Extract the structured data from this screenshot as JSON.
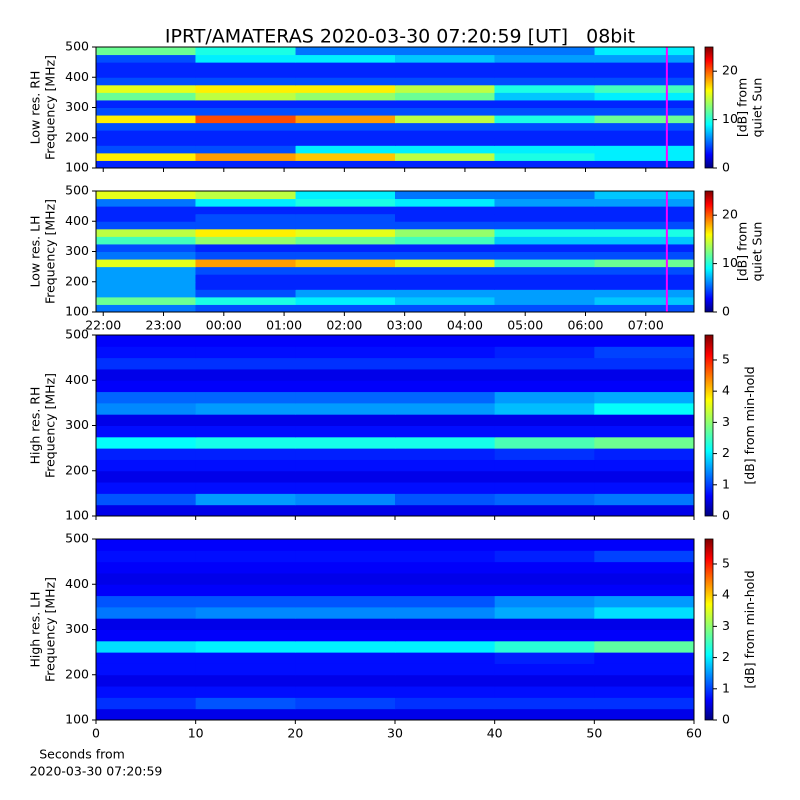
{
  "chart_data": [
    {
      "type": "heatmap",
      "title": "IPRT/AMATERAS 2020-03-30 07:20:59 [UT]   08bit",
      "ylabel": [
        "Low res. RH",
        "Frequency [MHz]"
      ],
      "colorbar_label": [
        "[dB] from",
        "quiet Sun"
      ],
      "xlim": [
        -0.12,
        9.8
      ],
      "ylim": [
        100,
        500
      ],
      "yticks": [
        100,
        200,
        300,
        400,
        500
      ],
      "clim": [
        0,
        25
      ],
      "cticks": [
        0,
        10,
        20
      ],
      "colormap": "jet",
      "marker_x": 9.35,
      "marker_color": "#ff00ff",
      "xbins": [
        -0.12,
        1.53,
        3.19,
        4.84,
        6.49,
        8.15,
        9.8
      ],
      "ybins": [
        100,
        125,
        150,
        175,
        200,
        225,
        250,
        275,
        300,
        325,
        350,
        375,
        400,
        425,
        450,
        475,
        500
      ],
      "z": [
        [
          4,
          4,
          4,
          4,
          4,
          4
        ],
        [
          16,
          18,
          17,
          14,
          10,
          9
        ],
        [
          5,
          5,
          9,
          9,
          9,
          9
        ],
        [
          4,
          4,
          4,
          4,
          4,
          4
        ],
        [
          4,
          4,
          4,
          4,
          4,
          4
        ],
        [
          5,
          5,
          5,
          5,
          5,
          5
        ],
        [
          16,
          20,
          18,
          14,
          10,
          12
        ],
        [
          5,
          5,
          5,
          5,
          5,
          5
        ],
        [
          4,
          4,
          4,
          4,
          4,
          4
        ],
        [
          12,
          14,
          13,
          12,
          8,
          9
        ],
        [
          15,
          16,
          16,
          14,
          10,
          11
        ],
        [
          5,
          5,
          5,
          5,
          5,
          5
        ],
        [
          4,
          4,
          4,
          4,
          4,
          4
        ],
        [
          4,
          4,
          4,
          4,
          4,
          4
        ],
        [
          5,
          9,
          9,
          8,
          7,
          7
        ],
        [
          12,
          10,
          6,
          6,
          6,
          9
        ]
      ]
    },
    {
      "type": "heatmap",
      "ylabel": [
        "Low res. LH",
        "Frequency [MHz]"
      ],
      "colorbar_label": [
        "[dB] from",
        "quiet Sun"
      ],
      "xlim": [
        -0.12,
        9.8
      ],
      "ylim": [
        100,
        500
      ],
      "yticks": [
        100,
        200,
        300,
        400,
        500
      ],
      "xticks": [
        {
          "value": 0,
          "label": "22:00"
        },
        {
          "value": 1,
          "label": "23:00"
        },
        {
          "value": 2,
          "label": "00:00"
        },
        {
          "value": 3,
          "label": "01:00"
        },
        {
          "value": 4,
          "label": "02:00"
        },
        {
          "value": 5,
          "label": "03:00"
        },
        {
          "value": 6,
          "label": "04:00"
        },
        {
          "value": 7,
          "label": "05:00"
        },
        {
          "value": 8,
          "label": "06:00"
        },
        {
          "value": 9,
          "label": "07:00"
        }
      ],
      "clim": [
        0,
        25
      ],
      "cticks": [
        0,
        10,
        20
      ],
      "colormap": "jet",
      "marker_x": 9.35,
      "marker_color": "#ff00ff",
      "xbins": [
        -0.12,
        1.53,
        3.19,
        4.84,
        6.49,
        8.15,
        9.8
      ],
      "ybins": [
        100,
        125,
        150,
        175,
        200,
        225,
        250,
        275,
        300,
        325,
        350,
        375,
        400,
        425,
        450,
        475,
        500
      ],
      "z": [
        [
          6,
          5,
          5,
          5,
          5,
          5
        ],
        [
          12,
          10,
          9,
          8,
          7,
          8
        ],
        [
          7,
          5,
          7,
          7,
          7,
          7
        ],
        [
          7,
          4,
          4,
          4,
          4,
          4
        ],
        [
          7,
          4,
          4,
          4,
          4,
          4
        ],
        [
          7,
          5,
          5,
          5,
          5,
          5
        ],
        [
          15,
          18,
          17,
          15,
          11,
          12
        ],
        [
          6,
          5,
          5,
          5,
          5,
          5
        ],
        [
          5,
          4,
          4,
          4,
          4,
          4
        ],
        [
          11,
          13,
          12,
          11,
          8,
          8
        ],
        [
          14,
          16,
          15,
          13,
          10,
          10
        ],
        [
          5,
          5,
          5,
          5,
          5,
          5
        ],
        [
          4,
          5,
          5,
          4,
          4,
          4
        ],
        [
          4,
          4,
          4,
          4,
          4,
          4
        ],
        [
          6,
          9,
          10,
          9,
          7,
          7
        ],
        [
          15,
          14,
          9,
          6,
          6,
          8
        ]
      ]
    },
    {
      "type": "heatmap",
      "ylabel": [
        "High res. RH",
        "Frequency [MHz]"
      ],
      "colorbar_label": [
        "[dB] from min-hold"
      ],
      "xlim": [
        0,
        60
      ],
      "ylim": [
        100,
        500
      ],
      "yticks": [
        100,
        200,
        300,
        400,
        500
      ],
      "clim": [
        0,
        5.8
      ],
      "cticks": [
        0,
        1,
        2,
        3,
        4,
        5
      ],
      "colormap": "jet",
      "xbins": [
        0,
        10,
        20,
        30,
        40,
        50,
        60
      ],
      "ybins": [
        100,
        125,
        150,
        175,
        200,
        225,
        250,
        275,
        300,
        325,
        350,
        375,
        400,
        425,
        450,
        475,
        500
      ],
      "z": [
        [
          0.6,
          0.6,
          0.6,
          0.6,
          0.6,
          0.6
        ],
        [
          1.2,
          1.6,
          1.5,
          1.2,
          1.3,
          1.4
        ],
        [
          0.8,
          0.8,
          0.8,
          0.8,
          0.8,
          0.8
        ],
        [
          0.6,
          0.6,
          0.6,
          0.6,
          0.6,
          0.6
        ],
        [
          0.8,
          0.8,
          0.8,
          0.8,
          0.8,
          0.8
        ],
        [
          0.9,
          0.9,
          0.9,
          0.9,
          1.0,
          0.9
        ],
        [
          2.2,
          2.3,
          2.3,
          2.3,
          2.6,
          2.8
        ],
        [
          0.8,
          0.8,
          0.8,
          0.8,
          0.8,
          0.8
        ],
        [
          0.6,
          0.6,
          0.6,
          0.6,
          0.6,
          0.6
        ],
        [
          1.5,
          1.6,
          1.6,
          1.6,
          1.8,
          2.2
        ],
        [
          1.3,
          1.3,
          1.3,
          1.3,
          1.6,
          1.7
        ],
        [
          0.7,
          0.7,
          0.7,
          0.7,
          0.7,
          0.7
        ],
        [
          0.6,
          0.6,
          0.6,
          0.6,
          0.6,
          0.6
        ],
        [
          1.0,
          1.0,
          1.0,
          1.0,
          1.0,
          1.0
        ],
        [
          0.8,
          0.8,
          0.8,
          0.8,
          0.9,
          1.1
        ],
        [
          0.7,
          0.7,
          0.7,
          0.7,
          0.7,
          0.7
        ]
      ]
    },
    {
      "type": "heatmap",
      "ylabel": [
        "High res. LH",
        "Frequency [MHz]"
      ],
      "colorbar_label": [
        "[dB] from min-hold"
      ],
      "xlabel": [
        "Seconds from",
        "2020-03-30 07:20:59"
      ],
      "xlim": [
        0,
        60
      ],
      "ylim": [
        100,
        500
      ],
      "yticks": [
        100,
        200,
        300,
        400,
        500
      ],
      "xticks": [
        0,
        10,
        20,
        30,
        40,
        50,
        60
      ],
      "clim": [
        0,
        5.8
      ],
      "cticks": [
        0,
        1,
        2,
        3,
        4,
        5
      ],
      "colormap": "jet",
      "xbins": [
        0,
        10,
        20,
        30,
        40,
        50,
        60
      ],
      "ybins": [
        100,
        125,
        150,
        175,
        200,
        225,
        250,
        275,
        300,
        325,
        350,
        375,
        400,
        425,
        450,
        475,
        500
      ],
      "z": [
        [
          0.6,
          0.6,
          0.6,
          0.6,
          0.6,
          0.6
        ],
        [
          1.0,
          1.2,
          1.1,
          1.0,
          1.0,
          1.0
        ],
        [
          0.8,
          0.8,
          0.8,
          0.8,
          0.8,
          0.8
        ],
        [
          0.6,
          0.6,
          0.6,
          0.6,
          0.6,
          0.6
        ],
        [
          0.8,
          0.8,
          0.8,
          0.8,
          0.8,
          0.8
        ],
        [
          0.8,
          0.8,
          0.8,
          0.8,
          0.9,
          0.8
        ],
        [
          2.0,
          2.1,
          2.1,
          2.1,
          2.4,
          2.7
        ],
        [
          0.7,
          0.7,
          0.7,
          0.7,
          0.7,
          0.7
        ],
        [
          0.6,
          0.6,
          0.6,
          0.6,
          0.6,
          0.6
        ],
        [
          1.4,
          1.5,
          1.5,
          1.5,
          1.7,
          2.0
        ],
        [
          1.2,
          1.2,
          1.2,
          1.2,
          1.5,
          1.6
        ],
        [
          0.7,
          0.7,
          0.7,
          0.7,
          0.7,
          0.7
        ],
        [
          0.6,
          0.6,
          0.6,
          0.6,
          0.6,
          0.6
        ],
        [
          0.7,
          0.7,
          0.7,
          0.7,
          0.7,
          0.7
        ],
        [
          0.8,
          0.8,
          0.8,
          0.8,
          0.9,
          1.1
        ],
        [
          0.7,
          0.7,
          0.7,
          0.7,
          0.7,
          0.7
        ]
      ]
    }
  ]
}
